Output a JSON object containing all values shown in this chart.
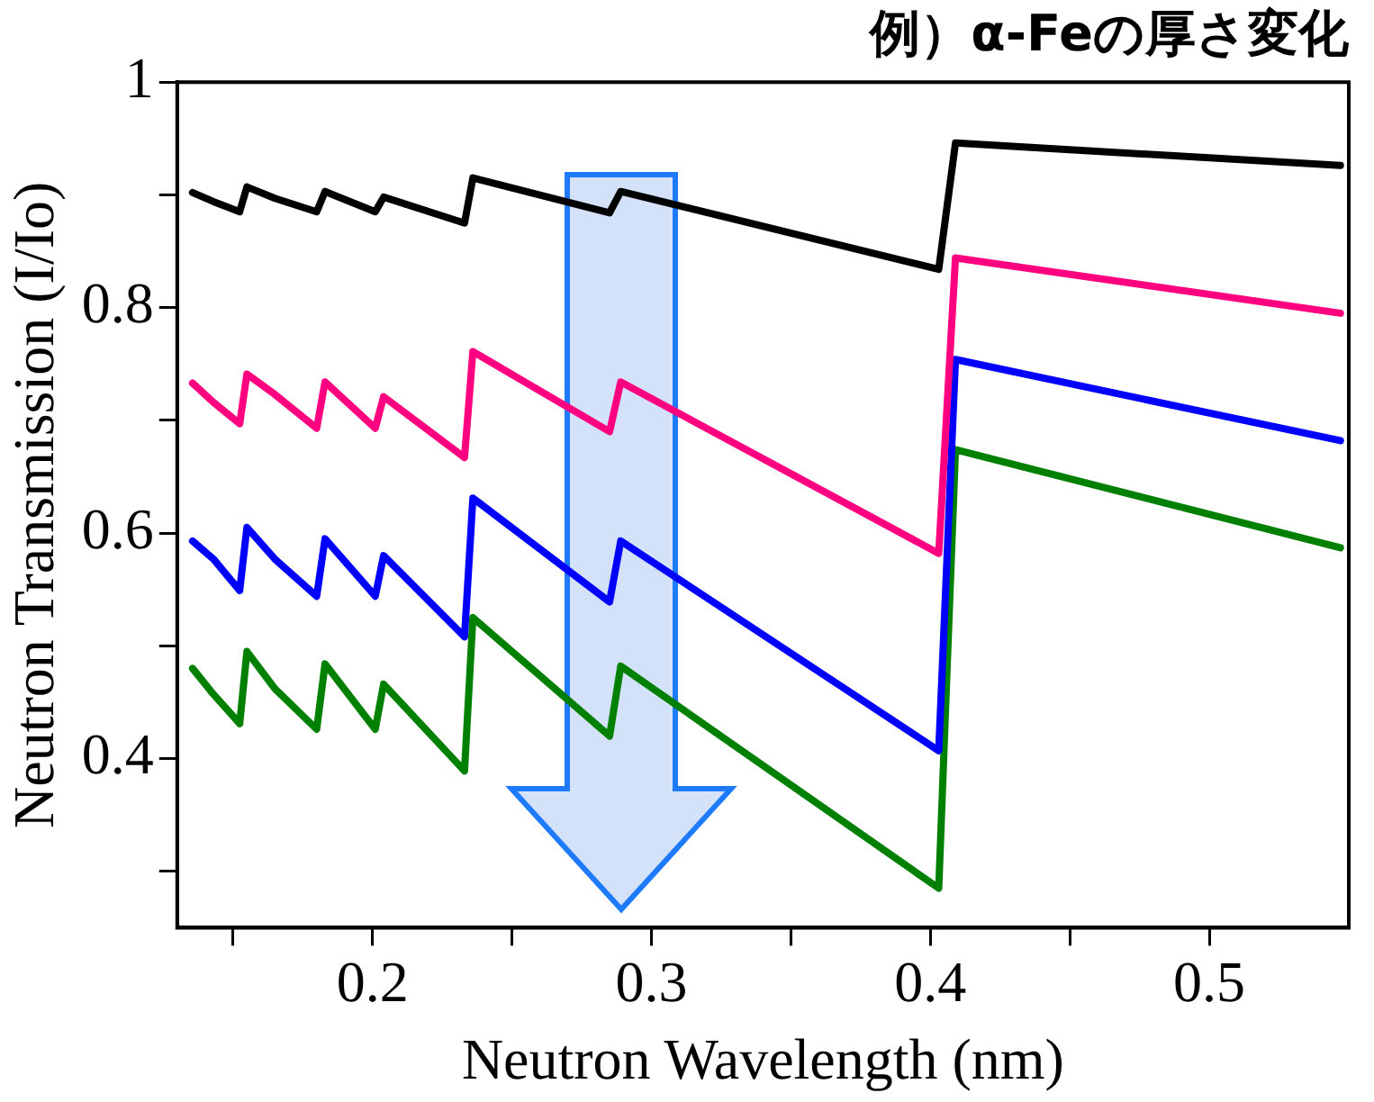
{
  "chart_data": {
    "type": "line",
    "title": "例）α-Feの厚さ変化",
    "xlabel": "Neutron Wavelength (nm)",
    "ylabel": "Neutron Transmission (I/Io)",
    "x": [
      0.1355,
      0.143,
      0.1524,
      0.155,
      0.165,
      0.18,
      0.183,
      0.201,
      0.204,
      0.233,
      0.236,
      0.285,
      0.289,
      0.403,
      0.409,
      0.547
    ],
    "series": [
      {
        "color": "#000000",
        "values": [
          0.902,
          0.894,
          0.885,
          0.907,
          0.897,
          0.885,
          0.903,
          0.885,
          0.898,
          0.875,
          0.915,
          0.884,
          0.903,
          0.834,
          0.946,
          0.926
        ]
      },
      {
        "color": "#ff0080",
        "values": [
          0.733,
          0.716,
          0.697,
          0.741,
          0.723,
          0.693,
          0.734,
          0.693,
          0.721,
          0.667,
          0.761,
          0.69,
          0.734,
          0.582,
          0.844,
          0.795
        ]
      },
      {
        "color": "#0000ff",
        "values": [
          0.593,
          0.577,
          0.549,
          0.605,
          0.577,
          0.544,
          0.595,
          0.544,
          0.58,
          0.508,
          0.631,
          0.539,
          0.593,
          0.407,
          0.754,
          0.682
        ]
      },
      {
        "color": "#008000",
        "values": [
          0.48,
          0.457,
          0.431,
          0.495,
          0.462,
          0.426,
          0.484,
          0.426,
          0.466,
          0.389,
          0.525,
          0.42,
          0.482,
          0.285,
          0.674,
          0.587
        ]
      }
    ],
    "xlim": [
      0.13,
      0.55
    ],
    "xticks": [
      {
        "value": 0.15,
        "label": null
      },
      0.2,
      {
        "value": 0.25,
        "label": null
      },
      0.3,
      {
        "value": 0.35,
        "label": null
      },
      0.4,
      {
        "value": 0.45,
        "label": null
      },
      0.5
    ],
    "ylim": [
      0.25,
      1
    ],
    "yticks": [
      {
        "value": 0.3,
        "label": null
      },
      0.4,
      {
        "value": 0.5,
        "label": null
      },
      0.6,
      {
        "value": 0.7,
        "label": null
      },
      0.8,
      {
        "value": 0.9,
        "label": null
      },
      1
    ],
    "grid": false,
    "legend": false,
    "marker": "none",
    "line_style": "solid"
  }
}
